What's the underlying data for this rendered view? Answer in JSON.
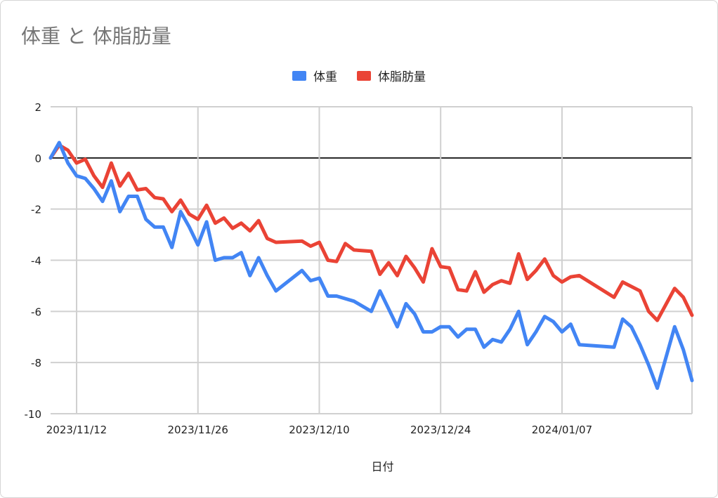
{
  "chart_data": {
    "type": "line",
    "title": "体重 と 体脂肪量",
    "xlabel": "日付",
    "ylabel": "",
    "ylim": [
      -10,
      2
    ],
    "yticks": [
      "2",
      "0",
      "-2",
      "-4",
      "-6",
      "-8",
      "-10"
    ],
    "xtick_labels": [
      "2023/11/12",
      "2023/11/26",
      "2023/12/10",
      "2023/12/24",
      "2024/01/07"
    ],
    "x_start": "2023/11/09",
    "x_end": "2024/01/22",
    "zero_line": true,
    "grid": true,
    "legend_position": "top",
    "series": [
      {
        "name": "体重",
        "color": "#4285f4",
        "points": [
          [
            "2023/11/09",
            0.0
          ],
          [
            "2023/11/10",
            0.6
          ],
          [
            "2023/11/11",
            -0.2
          ],
          [
            "2023/11/12",
            -0.7
          ],
          [
            "2023/11/13",
            -0.8
          ],
          [
            "2023/11/14",
            -1.2
          ],
          [
            "2023/11/15",
            -1.7
          ],
          [
            "2023/11/16",
            -0.9
          ],
          [
            "2023/11/17",
            -2.1
          ],
          [
            "2023/11/18",
            -1.5
          ],
          [
            "2023/11/19",
            -1.5
          ],
          [
            "2023/11/20",
            -2.4
          ],
          [
            "2023/11/21",
            -2.7
          ],
          [
            "2023/11/22",
            -2.7
          ],
          [
            "2023/11/23",
            -3.5
          ],
          [
            "2023/11/24",
            -2.1
          ],
          [
            "2023/11/25",
            -2.7
          ],
          [
            "2023/11/26",
            -3.4
          ],
          [
            "2023/11/27",
            -2.5
          ],
          [
            "2023/11/28",
            -4.0
          ],
          [
            "2023/11/29",
            -3.9
          ],
          [
            "2023/11/30",
            -3.9
          ],
          [
            "2023/12/01",
            -3.7
          ],
          [
            "2023/12/02",
            -4.6
          ],
          [
            "2023/12/03",
            -3.9
          ],
          [
            "2023/12/04",
            -4.6
          ],
          [
            "2023/12/05",
            -5.2
          ],
          [
            "2023/12/08",
            -4.4
          ],
          [
            "2023/12/09",
            -4.8
          ],
          [
            "2023/12/10",
            -4.7
          ],
          [
            "2023/12/11",
            -5.4
          ],
          [
            "2023/12/12",
            -5.4
          ],
          [
            "2023/12/14",
            -5.6
          ],
          [
            "2023/12/16",
            -6.0
          ],
          [
            "2023/12/17",
            -5.2
          ],
          [
            "2023/12/18",
            -5.9
          ],
          [
            "2023/12/19",
            -6.6
          ],
          [
            "2023/12/20",
            -5.7
          ],
          [
            "2023/12/21",
            -6.1
          ],
          [
            "2023/12/22",
            -6.8
          ],
          [
            "2023/12/23",
            -6.8
          ],
          [
            "2023/12/24",
            -6.6
          ],
          [
            "2023/12/25",
            -6.6
          ],
          [
            "2023/12/26",
            -7.0
          ],
          [
            "2023/12/27",
            -6.7
          ],
          [
            "2023/12/28",
            -6.7
          ],
          [
            "2023/12/29",
            -7.4
          ],
          [
            "2023/12/30",
            -7.1
          ],
          [
            "2023/12/31",
            -7.2
          ],
          [
            "2024/01/01",
            -6.7
          ],
          [
            "2024/01/02",
            -6.0
          ],
          [
            "2024/01/03",
            -7.3
          ],
          [
            "2024/01/04",
            -6.8
          ],
          [
            "2024/01/05",
            -6.2
          ],
          [
            "2024/01/06",
            -6.4
          ],
          [
            "2024/01/07",
            -6.8
          ],
          [
            "2024/01/08",
            -6.5
          ],
          [
            "2024/01/09",
            -7.3
          ],
          [
            "2024/01/13",
            -7.4
          ],
          [
            "2024/01/14",
            -6.3
          ],
          [
            "2024/01/15",
            -6.6
          ],
          [
            "2024/01/16",
            -7.3
          ],
          [
            "2024/01/17",
            -8.1
          ],
          [
            "2024/01/18",
            -9.0
          ],
          [
            "2024/01/20",
            -6.6
          ],
          [
            "2024/01/21",
            -7.5
          ],
          [
            "2024/01/22",
            -8.7
          ]
        ]
      },
      {
        "name": "体脂肪量",
        "color": "#ea4335",
        "points": [
          [
            "2023/11/09",
            0.0
          ],
          [
            "2023/11/10",
            0.5
          ],
          [
            "2023/11/11",
            0.3
          ],
          [
            "2023/11/12",
            -0.2
          ],
          [
            "2023/11/13",
            -0.05
          ],
          [
            "2023/11/14",
            -0.7
          ],
          [
            "2023/11/15",
            -1.15
          ],
          [
            "2023/11/16",
            -0.2
          ],
          [
            "2023/11/17",
            -1.1
          ],
          [
            "2023/11/18",
            -0.6
          ],
          [
            "2023/11/19",
            -1.25
          ],
          [
            "2023/11/20",
            -1.2
          ],
          [
            "2023/11/21",
            -1.55
          ],
          [
            "2023/11/22",
            -1.6
          ],
          [
            "2023/11/23",
            -2.1
          ],
          [
            "2023/11/24",
            -1.65
          ],
          [
            "2023/11/25",
            -2.2
          ],
          [
            "2023/11/26",
            -2.4
          ],
          [
            "2023/11/27",
            -1.85
          ],
          [
            "2023/11/28",
            -2.55
          ],
          [
            "2023/11/29",
            -2.35
          ],
          [
            "2023/11/30",
            -2.75
          ],
          [
            "2023/12/01",
            -2.55
          ],
          [
            "2023/12/02",
            -2.85
          ],
          [
            "2023/12/03",
            -2.45
          ],
          [
            "2023/12/04",
            -3.15
          ],
          [
            "2023/12/05",
            -3.3
          ],
          [
            "2023/12/08",
            -3.25
          ],
          [
            "2023/12/09",
            -3.45
          ],
          [
            "2023/12/10",
            -3.3
          ],
          [
            "2023/12/11",
            -4.0
          ],
          [
            "2023/12/12",
            -4.05
          ],
          [
            "2023/12/13",
            -3.35
          ],
          [
            "2023/12/14",
            -3.6
          ],
          [
            "2023/12/16",
            -3.65
          ],
          [
            "2023/12/17",
            -4.55
          ],
          [
            "2023/12/18",
            -4.1
          ],
          [
            "2023/12/19",
            -4.6
          ],
          [
            "2023/12/20",
            -3.85
          ],
          [
            "2023/12/21",
            -4.3
          ],
          [
            "2023/12/22",
            -4.85
          ],
          [
            "2023/12/23",
            -3.55
          ],
          [
            "2023/12/24",
            -4.25
          ],
          [
            "2023/12/25",
            -4.3
          ],
          [
            "2023/12/26",
            -5.15
          ],
          [
            "2023/12/27",
            -5.2
          ],
          [
            "2023/12/28",
            -4.45
          ],
          [
            "2023/12/29",
            -5.25
          ],
          [
            "2023/12/30",
            -4.95
          ],
          [
            "2023/12/31",
            -4.8
          ],
          [
            "2024/01/01",
            -4.9
          ],
          [
            "2024/01/02",
            -3.75
          ],
          [
            "2024/01/03",
            -4.75
          ],
          [
            "2024/01/04",
            -4.4
          ],
          [
            "2024/01/05",
            -3.95
          ],
          [
            "2024/01/06",
            -4.6
          ],
          [
            "2024/01/07",
            -4.85
          ],
          [
            "2024/01/08",
            -4.65
          ],
          [
            "2024/01/09",
            -4.6
          ],
          [
            "2024/01/13",
            -5.45
          ],
          [
            "2024/01/14",
            -4.85
          ],
          [
            "2024/01/16",
            -5.2
          ],
          [
            "2024/01/17",
            -6.0
          ],
          [
            "2024/01/18",
            -6.35
          ],
          [
            "2024/01/20",
            -5.1
          ],
          [
            "2024/01/21",
            -5.45
          ],
          [
            "2024/01/22",
            -6.15
          ]
        ]
      }
    ]
  }
}
